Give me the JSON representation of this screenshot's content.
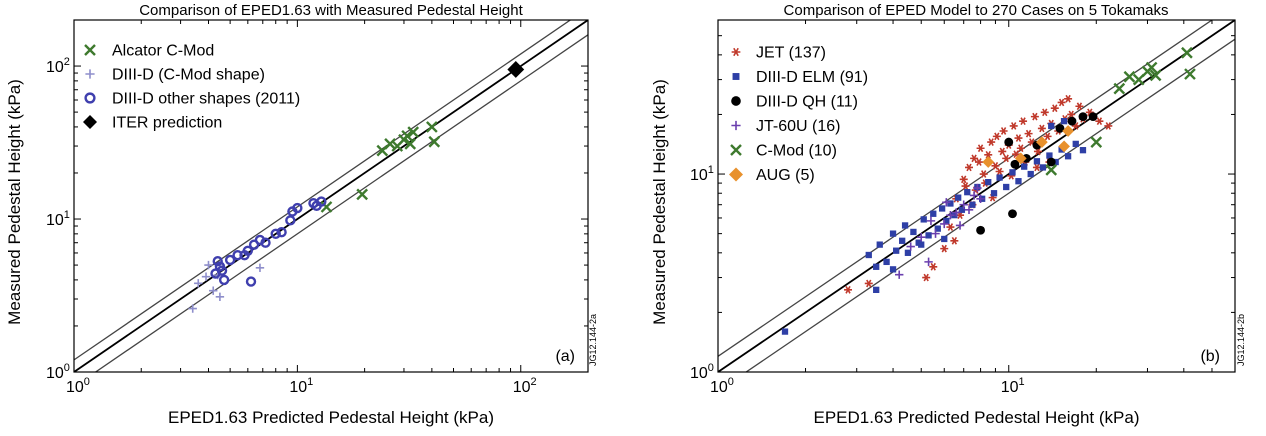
{
  "chart_data": [
    {
      "type": "scatter",
      "title": "Comparison of EPED1.63 with Measured Pedestal Height",
      "xlabel": "EPED1.63 Predicted Pedestal Height (kPa)",
      "ylabel": "Measured Pedestal Height (kPa)",
      "xscale": "log",
      "yscale": "log",
      "xlim": [
        1,
        200
      ],
      "ylim": [
        1,
        200
      ],
      "xticks": [
        {
          "base": "10",
          "exp": "0"
        },
        {
          "base": "10",
          "exp": "1"
        },
        {
          "base": "10",
          "exp": "2"
        }
      ],
      "yticks": [
        {
          "base": "10",
          "exp": "0"
        },
        {
          "base": "10",
          "exp": "1"
        },
        {
          "base": "10",
          "exp": "2"
        }
      ],
      "panel_label": "(a)",
      "code": "JG12.144-2a",
      "legend_position": "top-left",
      "reference_lines": [
        {
          "type": "ratio",
          "value": 1.0
        },
        {
          "type": "ratio",
          "value": 1.2
        },
        {
          "type": "ratio",
          "value": 0.8
        }
      ],
      "series": [
        {
          "name": "Alcator C-Mod",
          "marker": "x",
          "color": "#3e7a2e",
          "points": [
            [
              13.5,
              12
            ],
            [
              19.5,
              14.5
            ],
            [
              24,
              28
            ],
            [
              26,
              31
            ],
            [
              28,
              30
            ],
            [
              30,
              33
            ],
            [
              31,
              35
            ],
            [
              32,
              31
            ],
            [
              33,
              37
            ],
            [
              40,
              40
            ],
            [
              41,
              32
            ]
          ]
        },
        {
          "name": "DIII-D (C-Mod shape)",
          "marker": "plus",
          "color": "#8e8ecb",
          "points": [
            [
              3.4,
              2.6
            ],
            [
              3.6,
              3.8
            ],
            [
              3.9,
              4.2
            ],
            [
              4.0,
              5.0
            ],
            [
              4.2,
              3.4
            ],
            [
              4.4,
              4.3
            ],
            [
              4.5,
              3.1
            ],
            [
              6.8,
              4.8
            ]
          ]
        },
        {
          "name": "DIII-D other shapes (2011)",
          "marker": "circle",
          "color": "#3f3fae",
          "points": [
            [
              4.3,
              4.4
            ],
            [
              4.4,
              5.3
            ],
            [
              4.5,
              4.9
            ],
            [
              4.6,
              4.6
            ],
            [
              4.7,
              4.0
            ],
            [
              5.0,
              5.4
            ],
            [
              5.4,
              5.8
            ],
            [
              5.8,
              5.8
            ],
            [
              6.0,
              6.2
            ],
            [
              6.2,
              3.9
            ],
            [
              6.4,
              6.8
            ],
            [
              6.8,
              7.3
            ],
            [
              7.2,
              7.0
            ],
            [
              8.0,
              8.0
            ],
            [
              8.5,
              8.2
            ],
            [
              9.3,
              9.8
            ],
            [
              9.5,
              11.2
            ],
            [
              10.0,
              11.8
            ],
            [
              11.8,
              12.7
            ],
            [
              12.2,
              12.2
            ],
            [
              12.8,
              13.0
            ]
          ]
        },
        {
          "name": "ITER prediction",
          "marker": "diamond",
          "color": "#000000",
          "points": [
            [
              95,
              95
            ]
          ]
        }
      ]
    },
    {
      "type": "scatter",
      "title": "Comparison of EPED Model to 270 Cases on 5 Tokamaks",
      "xlabel": "EPED1.63 Predicted Pedestal Height (kPa)",
      "ylabel": "Measured Pedestal Height (kPa)",
      "xscale": "log",
      "yscale": "log",
      "xlim": [
        1,
        60
      ],
      "ylim": [
        1,
        60
      ],
      "xticks": [
        {
          "base": "10",
          "exp": "0"
        },
        {
          "base": "10",
          "exp": "1"
        }
      ],
      "yticks": [
        {
          "base": "10",
          "exp": "0"
        },
        {
          "base": "10",
          "exp": "1"
        }
      ],
      "panel_label": "(b)",
      "code": "JG12.144-2b",
      "legend_position": "top-left",
      "reference_lines": [
        {
          "type": "ratio",
          "value": 1.0
        },
        {
          "type": "ratio",
          "value": 1.2
        },
        {
          "type": "ratio",
          "value": 0.8
        }
      ],
      "series": [
        {
          "name": "JET (137)",
          "marker": "star",
          "color": "#c0392b",
          "points": [
            [
              2.8,
              2.6
            ],
            [
              3.3,
              2.8
            ],
            [
              5.2,
              3.0
            ],
            [
              5.5,
              3.4
            ],
            [
              6.0,
              4.2
            ],
            [
              6.3,
              5.4
            ],
            [
              6.5,
              4.6
            ],
            [
              6.6,
              7.5
            ],
            [
              6.8,
              6.2
            ],
            [
              7.0,
              9.4
            ],
            [
              7.1,
              8.7
            ],
            [
              7.3,
              10.8
            ],
            [
              7.5,
              7.0
            ],
            [
              7.6,
              12.0
            ],
            [
              7.7,
              8.3
            ],
            [
              7.9,
              11.5
            ],
            [
              8.0,
              13.5
            ],
            [
              8.2,
              10.0
            ],
            [
              8.3,
              9.0
            ],
            [
              8.5,
              12.5
            ],
            [
              8.7,
              14.5
            ],
            [
              8.8,
              7.6
            ],
            [
              9.0,
              11.0
            ],
            [
              9.1,
              15.5
            ],
            [
              9.3,
              10.3
            ],
            [
              9.5,
              13.0
            ],
            [
              9.6,
              16.5
            ],
            [
              9.8,
              12.0
            ],
            [
              10.0,
              14.0
            ],
            [
              10.2,
              9.8
            ],
            [
              10.4,
              17.5
            ],
            [
              10.6,
              12.6
            ],
            [
              10.8,
              15.2
            ],
            [
              11.0,
              13.5
            ],
            [
              11.2,
              18.5
            ],
            [
              11.4,
              11.5
            ],
            [
              11.7,
              16.0
            ],
            [
              12.0,
              14.5
            ],
            [
              12.3,
              19.5
            ],
            [
              12.6,
              13.0
            ],
            [
              13.0,
              17.0
            ],
            [
              13.3,
              20.5
            ],
            [
              13.6,
              15.5
            ],
            [
              14.0,
              18.0
            ],
            [
              14.4,
              21.5
            ],
            [
              14.8,
              16.5
            ],
            [
              15.2,
              23.0
            ],
            [
              15.6,
              19.0
            ],
            [
              16.0,
              24.0
            ],
            [
              16.4,
              20.0
            ],
            [
              17.0,
              17.5
            ],
            [
              17.5,
              22.0
            ],
            [
              18.0,
              19.0
            ],
            [
              19.0,
              20.5
            ],
            [
              20.5,
              18.5
            ],
            [
              22.0,
              17.5
            ],
            [
              13.8,
              11.5
            ],
            [
              12.5,
              10.8
            ]
          ]
        },
        {
          "name": "DIII-D ELM (91)",
          "marker": "square",
          "color": "#2e3fa6",
          "points": [
            [
              1.7,
              1.6
            ],
            [
              3.3,
              3.9
            ],
            [
              3.5,
              3.4
            ],
            [
              3.6,
              4.4
            ],
            [
              3.8,
              3.6
            ],
            [
              4.0,
              5.0
            ],
            [
              4.1,
              4.1
            ],
            [
              4.3,
              4.6
            ],
            [
              4.4,
              5.5
            ],
            [
              4.5,
              4.0
            ],
            [
              4.7,
              5.1
            ],
            [
              4.9,
              4.5
            ],
            [
              5.1,
              5.9
            ],
            [
              5.3,
              4.9
            ],
            [
              5.5,
              6.3
            ],
            [
              5.7,
              5.3
            ],
            [
              5.9,
              6.7
            ],
            [
              6.1,
              5.8
            ],
            [
              6.3,
              7.1
            ],
            [
              6.5,
              6.2
            ],
            [
              6.7,
              7.6
            ],
            [
              6.9,
              6.6
            ],
            [
              7.2,
              8.1
            ],
            [
              7.5,
              7.0
            ],
            [
              7.8,
              8.6
            ],
            [
              8.1,
              7.5
            ],
            [
              8.5,
              9.1
            ],
            [
              8.9,
              8.0
            ],
            [
              9.3,
              9.6
            ],
            [
              9.8,
              8.6
            ],
            [
              10.3,
              10.2
            ],
            [
              10.8,
              9.2
            ],
            [
              11.3,
              10.9
            ],
            [
              11.9,
              10.0
            ],
            [
              12.5,
              11.6
            ],
            [
              13.1,
              10.8
            ],
            [
              13.8,
              12.4
            ],
            [
              14.5,
              11.5
            ],
            [
              15.2,
              13.3
            ],
            [
              16.0,
              12.3
            ],
            [
              17.0,
              14.2
            ],
            [
              18.0,
              13.2
            ],
            [
              14.0,
              17.5
            ],
            [
              15.5,
              18.5
            ],
            [
              4.0,
              3.3
            ],
            [
              5.0,
              4.4
            ],
            [
              3.5,
              2.6
            ],
            [
              6.0,
              4.7
            ]
          ]
        },
        {
          "name": "DIII-D QH (11)",
          "marker": "dot",
          "color": "#000000",
          "points": [
            [
              8.0,
              5.2
            ],
            [
              10.3,
              6.3
            ],
            [
              10.5,
              11.2
            ],
            [
              11.5,
              12.0
            ],
            [
              12.5,
              14.0
            ],
            [
              15.0,
              17.0
            ],
            [
              16.5,
              18.5
            ],
            [
              18.0,
              19.5
            ],
            [
              19.5,
              19.5
            ],
            [
              10.0,
              14.5
            ],
            [
              14.0,
              11.5
            ]
          ]
        },
        {
          "name": "JT-60U (16)",
          "marker": "plus",
          "color": "#6a3fae",
          "points": [
            [
              4.2,
              3.1
            ],
            [
              4.6,
              4.3
            ],
            [
              5.0,
              4.8
            ],
            [
              5.3,
              3.6
            ],
            [
              5.6,
              5.0
            ],
            [
              6.0,
              5.6
            ],
            [
              6.3,
              6.2
            ],
            [
              6.6,
              6.4
            ],
            [
              7.0,
              7.0
            ],
            [
              7.3,
              6.6
            ],
            [
              7.6,
              7.8
            ],
            [
              8.0,
              7.5
            ],
            [
              6.1,
              7.2
            ],
            [
              5.4,
              5.8
            ],
            [
              6.8,
              5.5
            ],
            [
              7.8,
              8.5
            ]
          ]
        },
        {
          "name": "C-Mod (10)",
          "marker": "x",
          "color": "#3e7a2e",
          "points": [
            [
              14.0,
              10.5
            ],
            [
              20.0,
              14.5
            ],
            [
              24.0,
              27.0
            ],
            [
              26.0,
              31.0
            ],
            [
              28.0,
              30.0
            ],
            [
              30.0,
              33.0
            ],
            [
              31.0,
              34.5
            ],
            [
              32.0,
              31.5
            ],
            [
              41.0,
              41.0
            ],
            [
              42.0,
              32.0
            ]
          ]
        },
        {
          "name": "AUG (5)",
          "marker": "diamond",
          "color": "#e8912d",
          "points": [
            [
              8.5,
              11.5
            ],
            [
              11.0,
              12.0
            ],
            [
              13.0,
              14.5
            ],
            [
              15.5,
              13.8
            ],
            [
              16.0,
              16.5
            ]
          ]
        }
      ]
    }
  ]
}
